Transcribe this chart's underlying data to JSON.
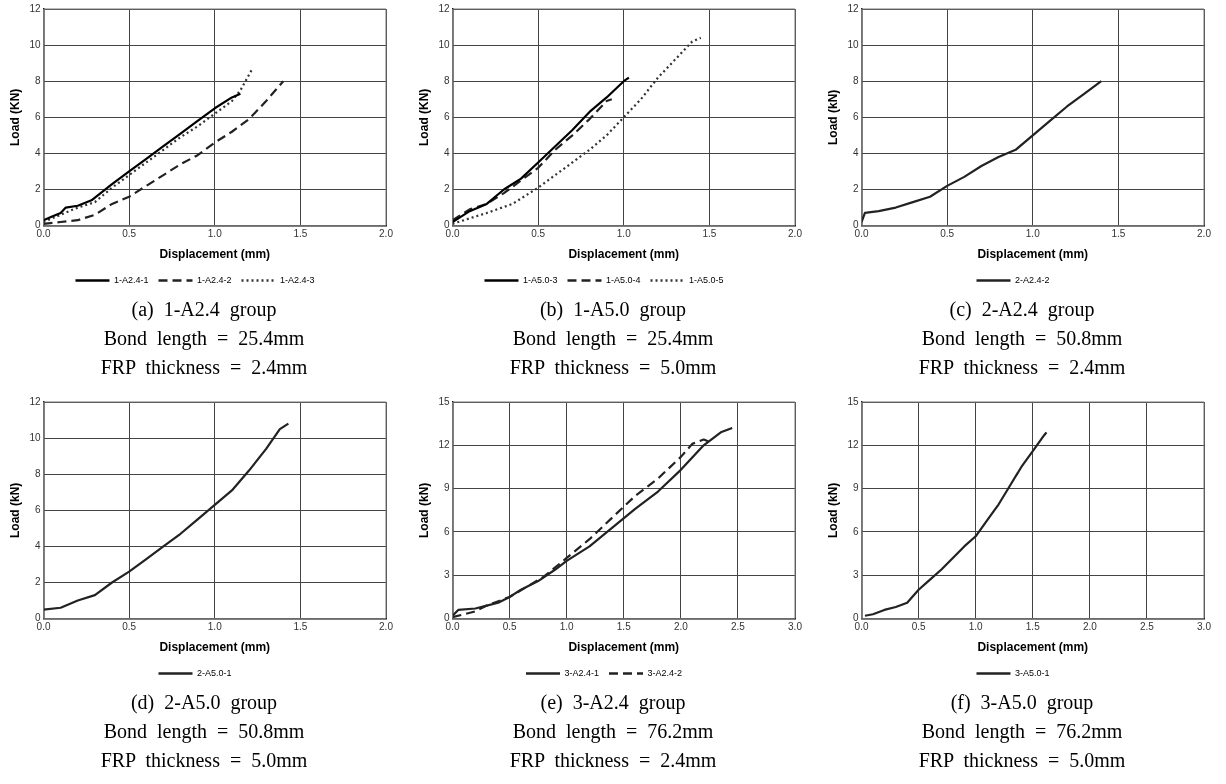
{
  "chart_data": [
    {
      "type": "line",
      "xlabel": "Displacement (mm)",
      "ylabel": "Load (KN)",
      "xlim": [
        0,
        2
      ],
      "xticks": [
        {
          "value": 0,
          "label": "0.0"
        },
        0.5,
        {
          "value": 1,
          "label": "1.0"
        },
        1.5,
        {
          "value": 2,
          "label": "2.0"
        }
      ],
      "ylim": [
        0,
        12
      ],
      "yticks": [
        0,
        2,
        4,
        6,
        8,
        10,
        12
      ],
      "grid": true,
      "legend": "bottom",
      "marker": "none",
      "annotations": [
        "(a)  1-A2.4  group",
        "Bond  length  =  25.4mm",
        "FRP  thickness  =  2.4mm"
      ],
      "series": [
        {
          "name": "1-A2.4-1",
          "color": "#000000",
          "line_style": "solid",
          "x": [
            0,
            0.05,
            0.1,
            0.13,
            0.2,
            0.28,
            0.4,
            0.5,
            0.6,
            0.7,
            0.8,
            0.9,
            1.0,
            1.1,
            1.15
          ],
          "values": [
            0.3,
            0.5,
            0.7,
            1.0,
            1.1,
            1.4,
            2.3,
            3.0,
            3.7,
            4.4,
            5.1,
            5.8,
            6.5,
            7.1,
            7.3
          ]
        },
        {
          "name": "1-A2.4-2",
          "color": "#222222",
          "line_style": "dashed",
          "x": [
            0,
            0.1,
            0.2,
            0.3,
            0.4,
            0.5,
            0.6,
            0.7,
            0.8,
            0.9,
            1.0,
            1.1,
            1.2,
            1.3,
            1.4
          ],
          "values": [
            0.1,
            0.2,
            0.3,
            0.6,
            1.2,
            1.6,
            2.2,
            2.8,
            3.4,
            3.9,
            4.6,
            5.2,
            5.9,
            6.9,
            8.0
          ]
        },
        {
          "name": "1-A2.4-3",
          "color": "#333333",
          "line_style": "dotted",
          "x": [
            0,
            0.1,
            0.2,
            0.3,
            0.4,
            0.5,
            0.6,
            0.7,
            0.8,
            0.9,
            1.0,
            1.1,
            1.15,
            1.22
          ],
          "values": [
            0.2,
            0.6,
            1.0,
            1.3,
            2.1,
            2.8,
            3.5,
            4.2,
            4.9,
            5.5,
            6.2,
            6.9,
            7.5,
            8.7
          ]
        }
      ]
    },
    {
      "type": "line",
      "xlabel": "Displacement (mm)",
      "ylabel": "Load (KN)",
      "xlim": [
        0,
        2
      ],
      "xticks": [
        {
          "value": 0,
          "label": "0.0"
        },
        0.5,
        {
          "value": 1,
          "label": "1.0"
        },
        1.5,
        {
          "value": 2,
          "label": "2.0"
        }
      ],
      "ylim": [
        0,
        12
      ],
      "yticks": [
        0,
        2,
        4,
        6,
        8,
        10,
        12
      ],
      "grid": true,
      "legend": "bottom",
      "marker": "none",
      "annotations": [
        "(b)  1-A5.0  group",
        "Bond  length  =  25.4mm",
        "FRP  thickness  =  5.0mm"
      ],
      "series": [
        {
          "name": "1-A5.0-3",
          "color": "#000000",
          "line_style": "solid",
          "x": [
            0,
            0.05,
            0.1,
            0.2,
            0.3,
            0.4,
            0.5,
            0.6,
            0.7,
            0.8,
            0.9,
            1.0,
            1.03
          ],
          "values": [
            0.2,
            0.5,
            0.8,
            1.2,
            2.0,
            2.6,
            3.5,
            4.4,
            5.3,
            6.3,
            7.1,
            8.0,
            8.2
          ]
        },
        {
          "name": "1-A5.0-4",
          "color": "#222222",
          "line_style": "dashed",
          "x": [
            0,
            0.1,
            0.2,
            0.3,
            0.4,
            0.5,
            0.6,
            0.7,
            0.8,
            0.9,
            0.93
          ],
          "values": [
            0.3,
            0.9,
            1.2,
            1.8,
            2.5,
            3.2,
            4.2,
            5.0,
            5.9,
            6.9,
            7.0
          ]
        },
        {
          "name": "1-A5.0-5",
          "color": "#333333",
          "line_style": "dotted",
          "x": [
            0,
            0.1,
            0.2,
            0.35,
            0.5,
            0.6,
            0.7,
            0.8,
            0.9,
            1.0,
            1.1,
            1.2,
            1.3,
            1.4,
            1.45
          ],
          "values": [
            0.1,
            0.4,
            0.7,
            1.2,
            2.1,
            2.8,
            3.5,
            4.2,
            5.0,
            6.0,
            7.0,
            8.2,
            9.2,
            10.2,
            10.4
          ]
        }
      ]
    },
    {
      "type": "line",
      "xlabel": "Displacement (mm)",
      "ylabel": "Load (kN)",
      "xlim": [
        0,
        2
      ],
      "xticks": [
        {
          "value": 0,
          "label": "0.0"
        },
        0.5,
        {
          "value": 1,
          "label": "1.0"
        },
        1.5,
        {
          "value": 2,
          "label": "2.0"
        }
      ],
      "ylim": [
        0,
        12
      ],
      "yticks": [
        0,
        2,
        4,
        6,
        8,
        10,
        12
      ],
      "grid": true,
      "legend": "bottom",
      "marker": "none",
      "annotations": [
        "(c)  2-A2.4  group",
        "Bond  length  =  50.8mm",
        "FRP  thickness  =  2.4mm"
      ],
      "series": [
        {
          "name": "2-A2.4-2",
          "color": "#222222",
          "line_style": "solid",
          "x": [
            0,
            0.02,
            0.1,
            0.2,
            0.3,
            0.4,
            0.5,
            0.6,
            0.7,
            0.8,
            0.9,
            1.0,
            1.1,
            1.2,
            1.3,
            1.4
          ],
          "values": [
            0.2,
            0.7,
            0.8,
            1.0,
            1.3,
            1.6,
            2.2,
            2.7,
            3.3,
            3.8,
            4.2,
            5.0,
            5.8,
            6.6,
            7.3,
            8.0
          ]
        }
      ]
    },
    {
      "type": "line",
      "xlabel": "Displacement (mm)",
      "ylabel": "Load (kN)",
      "xlim": [
        0,
        2
      ],
      "xticks": [
        {
          "value": 0,
          "label": "0.0"
        },
        0.5,
        {
          "value": 1,
          "label": "1.0"
        },
        1.5,
        {
          "value": 2,
          "label": "2.0"
        }
      ],
      "ylim": [
        0,
        12
      ],
      "yticks": [
        0,
        2,
        4,
        6,
        8,
        10,
        12
      ],
      "grid": true,
      "legend": "bottom",
      "marker": "none",
      "annotations": [
        "(d)  2-A5.0  group",
        "Bond  length  =  50.8mm",
        "FRP  thickness  =  5.0mm"
      ],
      "series": [
        {
          "name": "2-A5.0-1",
          "color": "#222222",
          "line_style": "solid",
          "x": [
            0,
            0.1,
            0.2,
            0.3,
            0.4,
            0.5,
            0.6,
            0.7,
            0.8,
            0.9,
            1.0,
            1.1,
            1.2,
            1.3,
            1.38,
            1.43
          ],
          "values": [
            0.5,
            0.6,
            1.0,
            1.3,
            2.0,
            2.6,
            3.3,
            4.0,
            4.7,
            5.5,
            6.3,
            7.1,
            8.2,
            9.4,
            10.5,
            10.8
          ]
        }
      ]
    },
    {
      "type": "line",
      "xlabel": "Displacement (mm)",
      "ylabel": "Load (kN)",
      "xlim": [
        0,
        3
      ],
      "xticks": [
        {
          "value": 0,
          "label": "0.0"
        },
        0.5,
        {
          "value": 1,
          "label": "1.0"
        },
        1.5,
        {
          "value": 2,
          "label": "2.0"
        },
        2.5,
        {
          "value": 3,
          "label": "3.0"
        }
      ],
      "ylim": [
        0,
        15
      ],
      "yticks": [
        0,
        3,
        6,
        9,
        12,
        15
      ],
      "grid": true,
      "legend": "bottom",
      "marker": "none",
      "annotations": [
        "(e)  3-A2.4  group",
        "Bond  length  =  76.2mm",
        "FRP  thickness  =  2.4mm"
      ],
      "series": [
        {
          "name": "3-A2.4-1",
          "color": "#222222",
          "line_style": "solid",
          "x": [
            0,
            0.05,
            0.2,
            0.3,
            0.4,
            0.5,
            0.6,
            0.75,
            0.9,
            1.0,
            1.2,
            1.4,
            1.6,
            1.8,
            2.0,
            2.2,
            2.35,
            2.45
          ],
          "values": [
            0.2,
            0.6,
            0.7,
            0.9,
            1.1,
            1.5,
            2.0,
            2.6,
            3.4,
            4.0,
            5.0,
            6.3,
            7.6,
            8.8,
            10.3,
            12.0,
            12.9,
            13.2
          ]
        },
        {
          "name": "3-A2.4-2",
          "color": "#222222",
          "line_style": "dashed",
          "x": [
            0,
            0.1,
            0.2,
            0.3,
            0.5,
            0.8,
            1.0,
            1.2,
            1.4,
            1.6,
            1.8,
            2.0,
            2.1,
            2.2,
            2.27
          ],
          "values": [
            0.1,
            0.3,
            0.5,
            0.9,
            1.5,
            2.9,
            4.2,
            5.5,
            7.0,
            8.5,
            9.7,
            11.2,
            12.1,
            12.4,
            12.2
          ]
        }
      ]
    },
    {
      "type": "line",
      "xlabel": "Displacement (mm)",
      "ylabel": "Load (kN)",
      "xlim": [
        0,
        3
      ],
      "xticks": [
        {
          "value": 0,
          "label": "0.0"
        },
        0.5,
        {
          "value": 1,
          "label": "1.0"
        },
        1.5,
        {
          "value": 2,
          "label": "2.0"
        },
        2.5,
        {
          "value": 3,
          "label": "3.0"
        }
      ],
      "ylim": [
        0,
        15
      ],
      "yticks": [
        0,
        3,
        6,
        9,
        12,
        15
      ],
      "grid": true,
      "legend": "bottom",
      "marker": "none",
      "annotations": [
        "(f)  3-A5.0  group",
        "Bond  length  =  76.2mm",
        "FRP  thickness  =  5.0mm"
      ],
      "series": [
        {
          "name": "3-A5.0-1",
          "color": "#222222",
          "line_style": "solid",
          "x": [
            0.03,
            0.1,
            0.2,
            0.3,
            0.4,
            0.5,
            0.6,
            0.7,
            0.8,
            0.9,
            1.0,
            1.1,
            1.2,
            1.3,
            1.4,
            1.5,
            1.6,
            1.62
          ],
          "values": [
            0.2,
            0.3,
            0.6,
            0.8,
            1.1,
            2.0,
            2.7,
            3.4,
            4.2,
            5.0,
            5.7,
            6.8,
            7.9,
            9.2,
            10.5,
            11.6,
            12.7,
            12.9
          ]
        }
      ]
    }
  ]
}
